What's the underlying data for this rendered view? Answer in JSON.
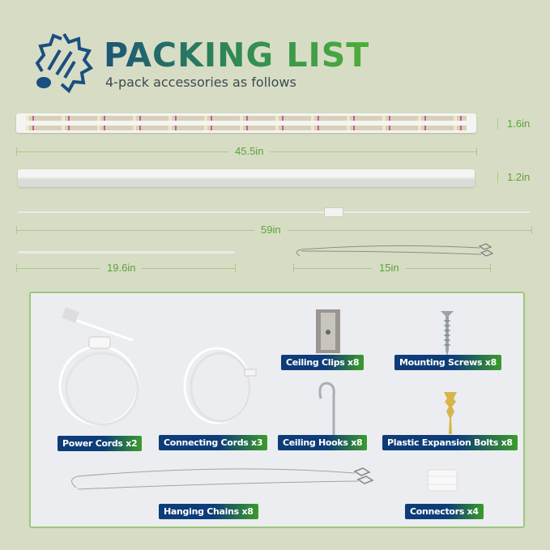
{
  "header": {
    "title": "PACKING LIST",
    "subtitle": "4-pack accessories as follows",
    "logo_icon": "sun-bulb-icon"
  },
  "dimensions": {
    "bar_height_1": "1.6in",
    "bar_length": "45.5in",
    "bar_height_2": "1.2in",
    "power_cord_length": "59in",
    "connecting_cord_length": "19.6in",
    "chain_length": "15in"
  },
  "accessories": [
    {
      "label": "Power Cords x2",
      "icon": "power-cord-icon"
    },
    {
      "label": "Connecting Cords x3",
      "icon": "connecting-cord-icon"
    },
    {
      "label": "Ceiling Clips x8",
      "icon": "ceiling-clip-icon"
    },
    {
      "label": "Mounting Screws x8",
      "icon": "screw-icon"
    },
    {
      "label": "Ceiling Hooks x8",
      "icon": "hook-icon"
    },
    {
      "label": "Plastic Expansion Bolts x8",
      "icon": "anchor-bolt-icon"
    },
    {
      "label": "Hanging Chains x8",
      "icon": "hanging-chain-icon"
    },
    {
      "label": "Connectors x4",
      "icon": "connector-icon"
    }
  ],
  "colors": {
    "background": "#d7ddc4",
    "label_blue": "#0e3c78",
    "label_green": "#3b9b2c",
    "dimension_text": "#5aa23c"
  }
}
